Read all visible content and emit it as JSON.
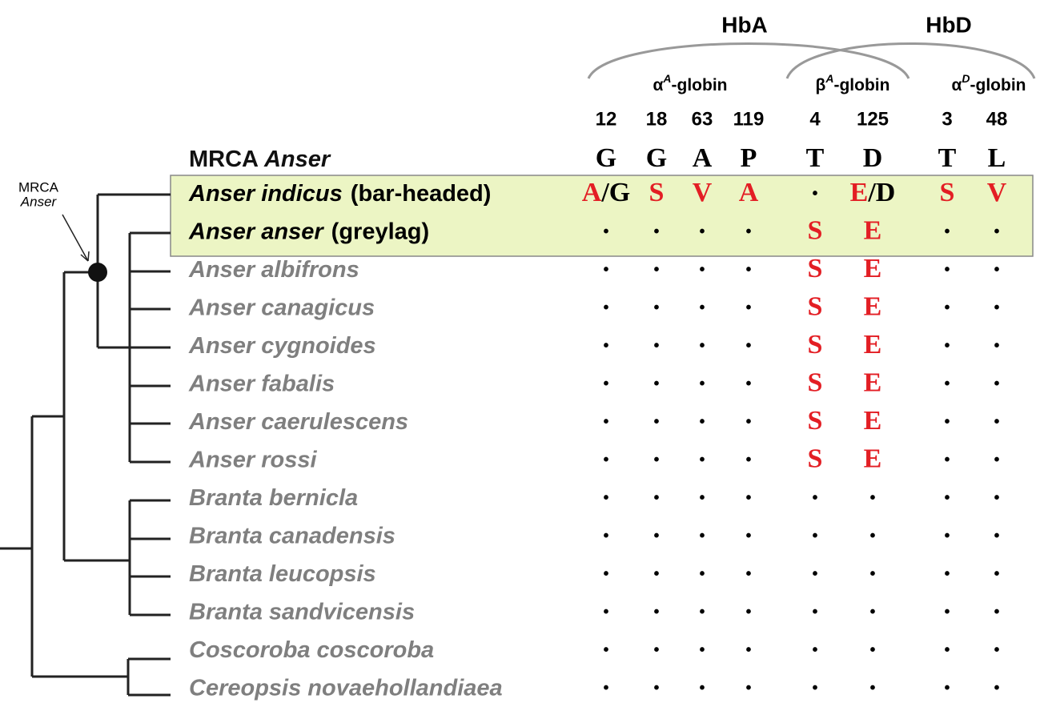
{
  "hemoglobins": [
    "HbA",
    "HbD"
  ],
  "globins": [
    {
      "base": "α",
      "sup": "A",
      "suffix": "-globin"
    },
    {
      "base": "β",
      "sup": "A",
      "suffix": "-globin"
    },
    {
      "base": "α",
      "sup": "D",
      "suffix": "-globin"
    }
  ],
  "positions": [
    "12",
    "18",
    "63",
    "119",
    "4",
    "125",
    "3",
    "48"
  ],
  "node_label": {
    "line1": "MRCA",
    "line2": "Anser"
  },
  "mrca": {
    "prefix": "MRCA",
    "italic": "Anser",
    "residues": [
      "G",
      "G",
      "A",
      "P",
      "T",
      "D",
      "T",
      "L"
    ]
  },
  "colors": {
    "changed": "#e31e24",
    "highlight_fill": "#ecf5c4",
    "species_dim": "#7f7f7f"
  },
  "rows": [
    {
      "name": "Anser indicus",
      "common": "(bar-headed)",
      "highlight": true,
      "cells": [
        [
          {
            "text": "A",
            "changed": true
          },
          {
            "text": "/G",
            "changed": false
          }
        ],
        [
          {
            "text": "S",
            "changed": true
          }
        ],
        [
          {
            "text": "V",
            "changed": true
          }
        ],
        [
          {
            "text": "A",
            "changed": true
          }
        ],
        [
          {
            "text": "•",
            "changed": false
          }
        ],
        [
          {
            "text": "E",
            "changed": true
          },
          {
            "text": "/D",
            "changed": false
          }
        ],
        [
          {
            "text": "S",
            "changed": true
          }
        ],
        [
          {
            "text": "V",
            "changed": true
          }
        ]
      ]
    },
    {
      "name": "Anser anser",
      "common": "(greylag)",
      "highlight": true,
      "cells": [
        [
          {
            "text": "•",
            "changed": false
          }
        ],
        [
          {
            "text": "•",
            "changed": false
          }
        ],
        [
          {
            "text": "•",
            "changed": false
          }
        ],
        [
          {
            "text": "•",
            "changed": false
          }
        ],
        [
          {
            "text": "S",
            "changed": true
          }
        ],
        [
          {
            "text": "E",
            "changed": true
          }
        ],
        [
          {
            "text": "•",
            "changed": false
          }
        ],
        [
          {
            "text": "•",
            "changed": false
          }
        ]
      ]
    },
    {
      "name": "Anser albifrons",
      "highlight": false,
      "cells": [
        [
          {
            "text": "•",
            "changed": false
          }
        ],
        [
          {
            "text": "•",
            "changed": false
          }
        ],
        [
          {
            "text": "•",
            "changed": false
          }
        ],
        [
          {
            "text": "•",
            "changed": false
          }
        ],
        [
          {
            "text": "S",
            "changed": true
          }
        ],
        [
          {
            "text": "E",
            "changed": true
          }
        ],
        [
          {
            "text": "•",
            "changed": false
          }
        ],
        [
          {
            "text": "•",
            "changed": false
          }
        ]
      ]
    },
    {
      "name": "Anser canagicus",
      "highlight": false,
      "cells": [
        [
          {
            "text": "•",
            "changed": false
          }
        ],
        [
          {
            "text": "•",
            "changed": false
          }
        ],
        [
          {
            "text": "•",
            "changed": false
          }
        ],
        [
          {
            "text": "•",
            "changed": false
          }
        ],
        [
          {
            "text": "S",
            "changed": true
          }
        ],
        [
          {
            "text": "E",
            "changed": true
          }
        ],
        [
          {
            "text": "•",
            "changed": false
          }
        ],
        [
          {
            "text": "•",
            "changed": false
          }
        ]
      ]
    },
    {
      "name": "Anser cygnoides",
      "highlight": false,
      "cells": [
        [
          {
            "text": "•",
            "changed": false
          }
        ],
        [
          {
            "text": "•",
            "changed": false
          }
        ],
        [
          {
            "text": "•",
            "changed": false
          }
        ],
        [
          {
            "text": "•",
            "changed": false
          }
        ],
        [
          {
            "text": "S",
            "changed": true
          }
        ],
        [
          {
            "text": "E",
            "changed": true
          }
        ],
        [
          {
            "text": "•",
            "changed": false
          }
        ],
        [
          {
            "text": "•",
            "changed": false
          }
        ]
      ]
    },
    {
      "name": "Anser fabalis",
      "highlight": false,
      "cells": [
        [
          {
            "text": "•",
            "changed": false
          }
        ],
        [
          {
            "text": "•",
            "changed": false
          }
        ],
        [
          {
            "text": "•",
            "changed": false
          }
        ],
        [
          {
            "text": "•",
            "changed": false
          }
        ],
        [
          {
            "text": "S",
            "changed": true
          }
        ],
        [
          {
            "text": "E",
            "changed": true
          }
        ],
        [
          {
            "text": "•",
            "changed": false
          }
        ],
        [
          {
            "text": "•",
            "changed": false
          }
        ]
      ]
    },
    {
      "name": "Anser caerulescens",
      "highlight": false,
      "cells": [
        [
          {
            "text": "•",
            "changed": false
          }
        ],
        [
          {
            "text": "•",
            "changed": false
          }
        ],
        [
          {
            "text": "•",
            "changed": false
          }
        ],
        [
          {
            "text": "•",
            "changed": false
          }
        ],
        [
          {
            "text": "S",
            "changed": true
          }
        ],
        [
          {
            "text": "E",
            "changed": true
          }
        ],
        [
          {
            "text": "•",
            "changed": false
          }
        ],
        [
          {
            "text": "•",
            "changed": false
          }
        ]
      ]
    },
    {
      "name": "Anser rossi",
      "highlight": false,
      "cells": [
        [
          {
            "text": "•",
            "changed": false
          }
        ],
        [
          {
            "text": "•",
            "changed": false
          }
        ],
        [
          {
            "text": "•",
            "changed": false
          }
        ],
        [
          {
            "text": "•",
            "changed": false
          }
        ],
        [
          {
            "text": "S",
            "changed": true
          }
        ],
        [
          {
            "text": "E",
            "changed": true
          }
        ],
        [
          {
            "text": "•",
            "changed": false
          }
        ],
        [
          {
            "text": "•",
            "changed": false
          }
        ]
      ]
    },
    {
      "name": "Branta bernicla",
      "highlight": false,
      "cells": [
        [
          {
            "text": "•",
            "changed": false
          }
        ],
        [
          {
            "text": "•",
            "changed": false
          }
        ],
        [
          {
            "text": "•",
            "changed": false
          }
        ],
        [
          {
            "text": "•",
            "changed": false
          }
        ],
        [
          {
            "text": "•",
            "changed": false
          }
        ],
        [
          {
            "text": "•",
            "changed": false
          }
        ],
        [
          {
            "text": "•",
            "changed": false
          }
        ],
        [
          {
            "text": "•",
            "changed": false
          }
        ]
      ]
    },
    {
      "name": "Branta canadensis",
      "highlight": false,
      "cells": [
        [
          {
            "text": "•",
            "changed": false
          }
        ],
        [
          {
            "text": "•",
            "changed": false
          }
        ],
        [
          {
            "text": "•",
            "changed": false
          }
        ],
        [
          {
            "text": "•",
            "changed": false
          }
        ],
        [
          {
            "text": "•",
            "changed": false
          }
        ],
        [
          {
            "text": "•",
            "changed": false
          }
        ],
        [
          {
            "text": "•",
            "changed": false
          }
        ],
        [
          {
            "text": "•",
            "changed": false
          }
        ]
      ]
    },
    {
      "name": "Branta leucopsis",
      "highlight": false,
      "cells": [
        [
          {
            "text": "•",
            "changed": false
          }
        ],
        [
          {
            "text": "•",
            "changed": false
          }
        ],
        [
          {
            "text": "•",
            "changed": false
          }
        ],
        [
          {
            "text": "•",
            "changed": false
          }
        ],
        [
          {
            "text": "•",
            "changed": false
          }
        ],
        [
          {
            "text": "•",
            "changed": false
          }
        ],
        [
          {
            "text": "•",
            "changed": false
          }
        ],
        [
          {
            "text": "•",
            "changed": false
          }
        ]
      ]
    },
    {
      "name": "Branta sandvicensis",
      "highlight": false,
      "cells": [
        [
          {
            "text": "•",
            "changed": false
          }
        ],
        [
          {
            "text": "•",
            "changed": false
          }
        ],
        [
          {
            "text": "•",
            "changed": false
          }
        ],
        [
          {
            "text": "•",
            "changed": false
          }
        ],
        [
          {
            "text": "•",
            "changed": false
          }
        ],
        [
          {
            "text": "•",
            "changed": false
          }
        ],
        [
          {
            "text": "•",
            "changed": false
          }
        ],
        [
          {
            "text": "•",
            "changed": false
          }
        ]
      ]
    },
    {
      "name": "Coscoroba coscoroba",
      "highlight": false,
      "cells": [
        [
          {
            "text": "•",
            "changed": false
          }
        ],
        [
          {
            "text": "•",
            "changed": false
          }
        ],
        [
          {
            "text": "•",
            "changed": false
          }
        ],
        [
          {
            "text": "•",
            "changed": false
          }
        ],
        [
          {
            "text": "•",
            "changed": false
          }
        ],
        [
          {
            "text": "•",
            "changed": false
          }
        ],
        [
          {
            "text": "•",
            "changed": false
          }
        ],
        [
          {
            "text": "•",
            "changed": false
          }
        ]
      ]
    },
    {
      "name": "Cereopsis novaehollandiaea",
      "highlight": false,
      "cells": [
        [
          {
            "text": "•",
            "changed": false
          }
        ],
        [
          {
            "text": "•",
            "changed": false
          }
        ],
        [
          {
            "text": "•",
            "changed": false
          }
        ],
        [
          {
            "text": "•",
            "changed": false
          }
        ],
        [
          {
            "text": "•",
            "changed": false
          }
        ],
        [
          {
            "text": "•",
            "changed": false
          }
        ],
        [
          {
            "text": "•",
            "changed": false
          }
        ],
        [
          {
            "text": "•",
            "changed": false
          }
        ]
      ]
    }
  ]
}
